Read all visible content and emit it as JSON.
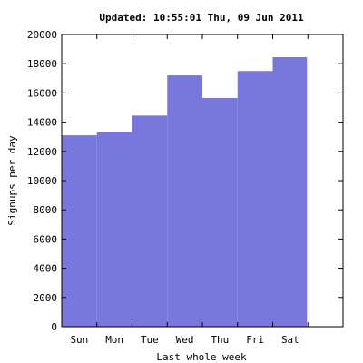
{
  "chart_data": {
    "type": "bar",
    "title": "Updated: 10:55:01 Thu, 09 Jun 2011",
    "xlabel": "Last whole week",
    "ylabel": "Signups per day",
    "categories": [
      "Sun",
      "Mon",
      "Tue",
      "Wed",
      "Thu",
      "Fri",
      "Sat"
    ],
    "values": [
      13100,
      13300,
      14450,
      17200,
      15650,
      17500,
      18450
    ],
    "ylim": [
      0,
      20000
    ],
    "yticks": [
      "0",
      "2000",
      "4000",
      "6000",
      "8000",
      "10000",
      "12000",
      "14000",
      "16000",
      "18000",
      "20000"
    ],
    "grid": false,
    "bar_color": "#7777dd"
  }
}
